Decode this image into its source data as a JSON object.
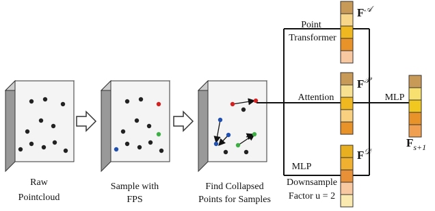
{
  "stages": [
    {
      "label_lines": [
        "Raw",
        "Pointcloud"
      ]
    },
    {
      "label_lines": [
        "Sample with",
        "FPS"
      ]
    },
    {
      "label_lines": [
        "Find Collapsed",
        "Points for Samples"
      ]
    }
  ],
  "branches": [
    {
      "label_lines": [
        "Point",
        "Transformer"
      ],
      "feature": "F",
      "superscript": "𝒜"
    },
    {
      "label_lines": [
        "Attention"
      ],
      "feature": "F",
      "superscript": "𝒫"
    },
    {
      "label_lines": [
        "MLP",
        "Downsample",
        "Factor u = 2"
      ],
      "feature": "F",
      "superscript": "𝒟"
    }
  ],
  "output": {
    "label": "MLP",
    "feature": "F",
    "subscript": "s+1"
  }
}
